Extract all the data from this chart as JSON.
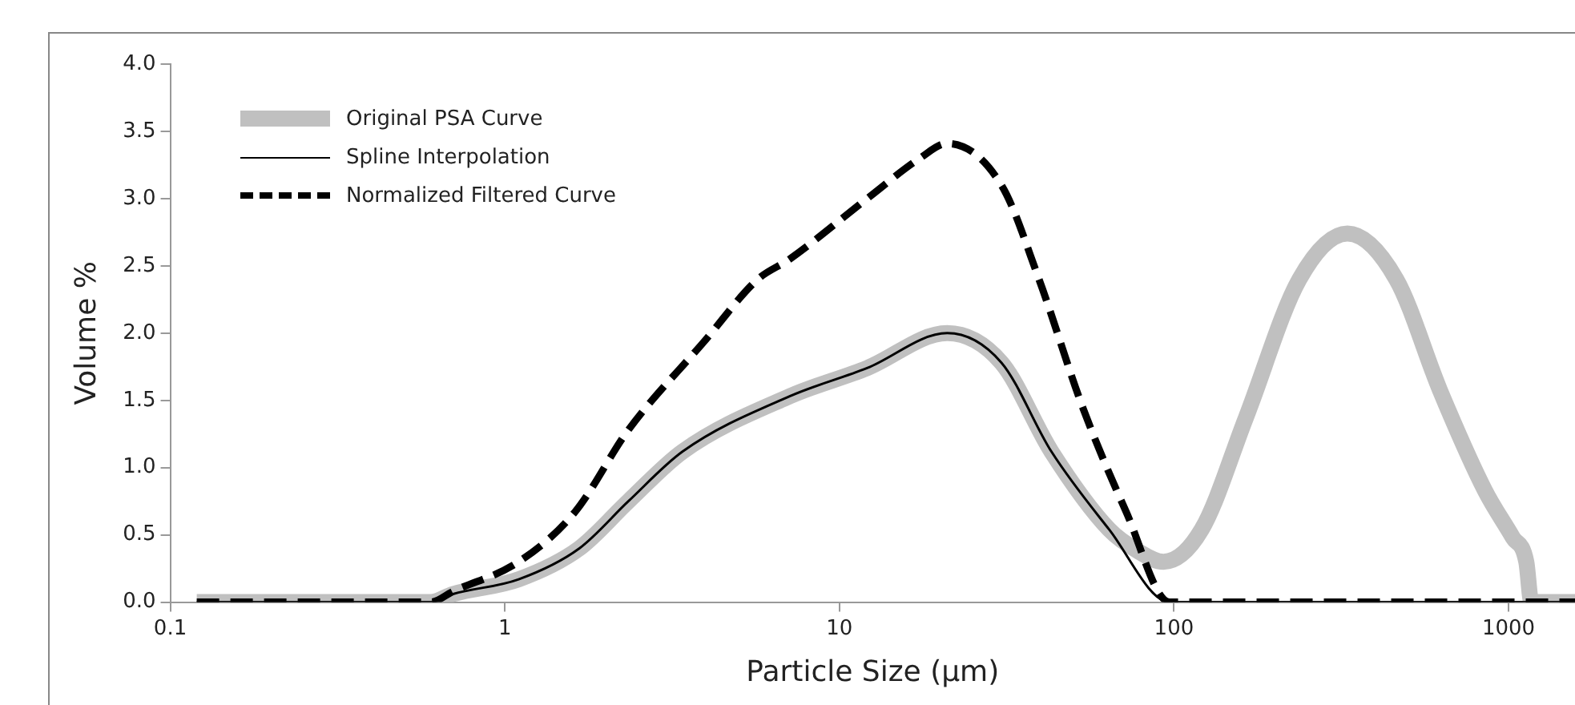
{
  "chart_data": {
    "type": "line",
    "xlabel": "Particle Size (µm)",
    "ylabel": "Volume %",
    "log": "x",
    "xlim": [
      0.1,
      1580
    ],
    "xticks": [
      0.1,
      1,
      10,
      100,
      1000
    ],
    "ylim": [
      0,
      4
    ],
    "yticks": [
      {
        "value": 0,
        "label": "0.0"
      },
      {
        "value": 0.5,
        "label": "0.5"
      },
      {
        "value": 1,
        "label": "1.0"
      },
      {
        "value": 1.5,
        "label": "1.5"
      },
      {
        "value": 2,
        "label": "2.0"
      },
      {
        "value": 2.5,
        "label": "2.5"
      },
      {
        "value": 3,
        "label": "3.0"
      },
      {
        "value": 3.5,
        "label": "3.5"
      },
      {
        "value": 4,
        "label": "4.0"
      }
    ],
    "grid": false,
    "legend": "top left",
    "marker": "none",
    "series": [
      {
        "name": "Original PSA Curve",
        "color": "#c0c0c0",
        "line_style": "solid",
        "x": [
          0.12,
          0.6,
          0.7,
          1.1,
          1.67,
          2.34,
          3.4,
          7.1,
          12.1,
          21,
          30.5,
          43,
          64,
          78,
          93,
          121,
          164,
          237,
          330,
          462,
          625,
          850,
          1030,
          1130,
          1170,
          1580
        ],
        "values": [
          0,
          0,
          0.06,
          0.17,
          0.4,
          0.75,
          1.12,
          1.53,
          1.74,
          2.0,
          1.78,
          1.12,
          0.54,
          0.38,
          0.3,
          0.54,
          1.37,
          2.4,
          2.74,
          2.4,
          1.57,
          0.83,
          0.48,
          0.3,
          0,
          0
        ]
      },
      {
        "name": "Spline Interpolation",
        "color": "#000000",
        "line_style": "solid",
        "x": [
          0.12,
          0.6,
          0.7,
          1.1,
          1.67,
          2.34,
          3.4,
          7.1,
          12.1,
          21,
          30.5,
          43,
          64,
          97,
          1580
        ],
        "values": [
          0,
          0,
          0.06,
          0.17,
          0.4,
          0.75,
          1.12,
          1.53,
          1.74,
          2.0,
          1.78,
          1.12,
          0.54,
          0,
          0
        ]
      },
      {
        "name": "Normalized Filtered Curve",
        "color": "#000000",
        "line_style": "dashed",
        "x": [
          0.12,
          0.6,
          0.7,
          1.1,
          1.62,
          2.34,
          3.95,
          5.7,
          7.1,
          12.1,
          17.4,
          21,
          30.5,
          39.5,
          53.5,
          72,
          97,
          1580
        ],
        "values": [
          0,
          0,
          0.08,
          0.3,
          0.67,
          1.28,
          1.94,
          2.4,
          2.55,
          3.0,
          3.3,
          3.41,
          3.1,
          2.4,
          1.44,
          0.67,
          0,
          0
        ]
      }
    ]
  }
}
